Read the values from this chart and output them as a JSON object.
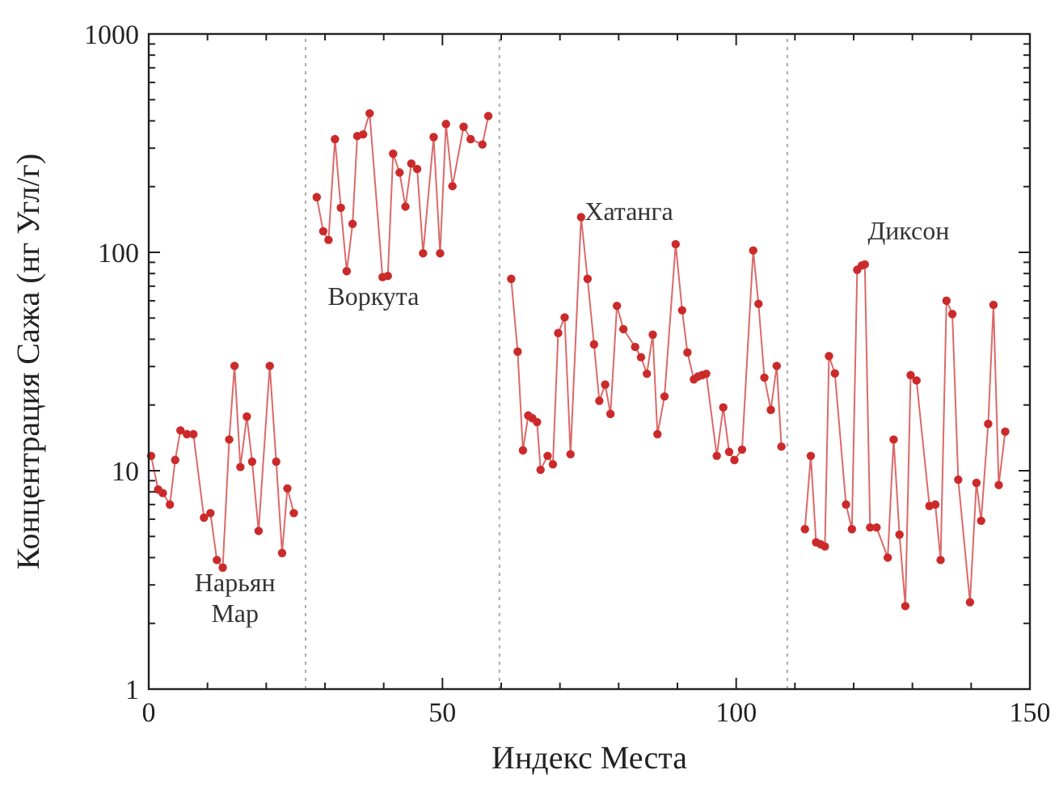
{
  "chart_data": {
    "type": "line",
    "xlabel": "Индекс Места",
    "ylabel": "Концентрация Сажа (нг Угл/г)",
    "log": "y",
    "marker": "circle",
    "line_style": "solid",
    "grid": false,
    "xlim": [
      0,
      150
    ],
    "ylim": [
      1,
      1000
    ],
    "xticks": [
      0,
      {
        "value": 10,
        "label": null
      },
      {
        "value": 20,
        "label": null
      },
      {
        "value": 30,
        "label": null
      },
      {
        "value": 40,
        "label": null
      },
      50,
      {
        "value": 60,
        "label": null
      },
      {
        "value": 70,
        "label": null
      },
      {
        "value": 80,
        "label": null
      },
      {
        "value": 90,
        "label": null
      },
      100,
      {
        "value": 110,
        "label": null
      },
      {
        "value": 120,
        "label": null
      },
      {
        "value": 130,
        "label": null
      },
      {
        "value": 140,
        "label": null
      },
      150
    ],
    "yticks": [
      1,
      {
        "value": 2,
        "label": null
      },
      {
        "value": 3,
        "label": null
      },
      {
        "value": 4,
        "label": null
      },
      {
        "value": 5,
        "label": null
      },
      {
        "value": 6,
        "label": null
      },
      {
        "value": 7,
        "label": null
      },
      {
        "value": 8,
        "label": null
      },
      {
        "value": 9,
        "label": null
      },
      10,
      {
        "value": 20,
        "label": null
      },
      {
        "value": 30,
        "label": null
      },
      {
        "value": 40,
        "label": null
      },
      {
        "value": 50,
        "label": null
      },
      {
        "value": 60,
        "label": null
      },
      {
        "value": 70,
        "label": null
      },
      {
        "value": 80,
        "label": null
      },
      {
        "value": 90,
        "label": null
      },
      100,
      {
        "value": 200,
        "label": null
      },
      {
        "value": 300,
        "label": null
      },
      {
        "value": 400,
        "label": null
      },
      {
        "value": 500,
        "label": null
      },
      {
        "value": 600,
        "label": null
      },
      {
        "value": 700,
        "label": null
      },
      {
        "value": 800,
        "label": null
      },
      {
        "value": 900,
        "label": null
      },
      1000
    ],
    "series": [
      {
        "color": "#cc2a2a",
        "x": [
          0.4,
          1.6,
          2.4,
          3.6,
          4.5,
          5.4,
          6.5,
          7.6,
          9.4,
          10.5,
          11.6,
          12.6,
          13.7,
          14.6,
          15.6,
          16.7,
          17.6,
          18.7,
          20.6,
          21.7,
          22.7,
          23.6,
          24.7
        ],
        "values": [
          11.7,
          8.2,
          7.9,
          7.0,
          11.2,
          15.3,
          14.7,
          14.7,
          6.1,
          6.4,
          3.9,
          3.6,
          13.9,
          30.2,
          10.4,
          17.7,
          11.0,
          5.3,
          30.2,
          11.0,
          4.2,
          8.3,
          6.4
        ]
      },
      {
        "color": "#cc2a2a",
        "x": [
          28.6,
          29.7,
          30.6,
          31.7,
          32.7,
          33.7,
          34.7,
          35.5,
          36.5,
          37.6,
          39.8,
          40.7,
          41.6,
          42.7,
          43.7,
          44.7,
          45.7,
          46.7,
          48.5,
          49.6,
          50.6,
          51.7,
          53.6,
          54.8,
          56.8,
          57.8
        ],
        "values": [
          179,
          125,
          114,
          330,
          160,
          82,
          135,
          341,
          347,
          433,
          77,
          78,
          283,
          232,
          162,
          255,
          241,
          99,
          337,
          99,
          387,
          201,
          376,
          330,
          312,
          421
        ]
      },
      {
        "color": "#cc2a2a",
        "x": [
          61.7,
          62.8,
          63.7,
          64.6,
          65.3,
          66.1,
          66.7,
          67.9,
          68.8,
          69.7,
          70.8,
          71.8,
          73.6,
          74.7,
          75.8,
          76.7,
          77.7,
          78.6,
          79.7,
          80.8,
          82.8,
          83.8,
          84.8,
          85.8,
          86.6,
          87.8,
          89.7,
          90.8,
          91.7,
          92.8,
          93.5,
          94.2,
          94.9,
          96.7,
          97.8,
          98.8,
          99.7,
          101,
          102.9,
          103.8,
          104.8,
          105.9,
          106.9,
          107.7
        ],
        "values": [
          75.6,
          35.1,
          12.4,
          17.9,
          17.4,
          16.7,
          10.1,
          11.7,
          10.7,
          42.7,
          50.4,
          11.9,
          145,
          75.6,
          37.9,
          20.9,
          24.8,
          18.2,
          56.9,
          44.5,
          36.9,
          33.1,
          27.8,
          42.0,
          14.7,
          21.9,
          109,
          54.3,
          34.8,
          26.2,
          27.0,
          27.4,
          27.8,
          11.7,
          19.5,
          12.2,
          11.2,
          12.5,
          102,
          58.1,
          26.7,
          19.0,
          30.2,
          12.9
        ]
      },
      {
        "color": "#cc2a2a",
        "x": [
          111.7,
          112.7,
          113.6,
          114.4,
          115.1,
          115.8,
          116.8,
          118.7,
          119.7,
          120.6,
          121.4,
          121.9,
          122.8,
          123.9,
          125.8,
          126.8,
          127.8,
          128.8,
          129.7,
          130.7,
          132.9,
          133.9,
          134.8,
          135.8,
          136.8,
          137.8,
          139.8,
          140.9,
          141.7,
          142.9,
          143.8,
          144.7,
          145.8
        ],
        "values": [
          5.4,
          11.7,
          4.7,
          4.6,
          4.5,
          33.5,
          27.9,
          7.0,
          5.4,
          83.2,
          87.1,
          88.1,
          5.5,
          5.5,
          4.0,
          13.9,
          5.1,
          2.4,
          27.4,
          25.9,
          6.9,
          7.0,
          3.9,
          60.1,
          52.2,
          9.1,
          2.5,
          8.8,
          5.9,
          16.4,
          57.5,
          8.6,
          15.1
        ]
      }
    ],
    "ref_lines": [
      {
        "axis": "x",
        "value": 26.7,
        "color": "#aaaaaa",
        "line_style": "dotted"
      },
      {
        "axis": "x",
        "value": 59.7,
        "color": "#aaaaaa",
        "line_style": "dotted"
      },
      {
        "axis": "x",
        "value": 108.7,
        "color": "#aaaaaa",
        "line_style": "dotted"
      }
    ],
    "annotations": [
      "Нарьян Мар",
      "Воркута",
      "Хатанга",
      "Диксон"
    ]
  }
}
